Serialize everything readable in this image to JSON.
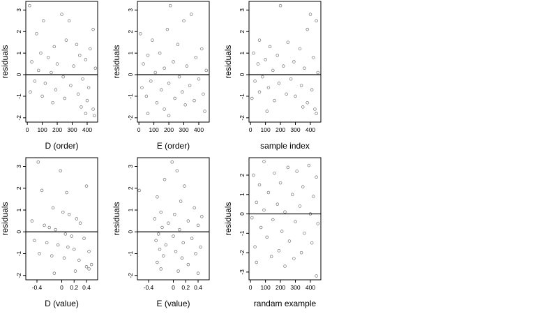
{
  "chart_data": [
    {
      "type": "scatter",
      "xlabel": "D (order)",
      "ylabel": "residuals",
      "xlim": [
        -10,
        470
      ],
      "ylim": [
        -2.2,
        3.4
      ],
      "xticks": [
        0,
        100,
        200,
        300,
        400
      ],
      "yticks": [
        -2,
        -1,
        0,
        1,
        2,
        3
      ],
      "hline": 0,
      "points": "seeded-order-D",
      "series": [
        {
          "values": [
            [
              15,
              3.2
            ],
            [
              230,
              2.8
            ],
            [
              108,
              2.5
            ],
            [
              280,
              2.5
            ],
            [
              440,
              2.1
            ],
            [
              62,
              1.9
            ],
            [
              260,
              1.6
            ],
            [
              330,
              1.4
            ],
            [
              180,
              1.3
            ],
            [
              420,
              1.2
            ],
            [
              90,
              1.0
            ],
            [
              350,
              0.9
            ],
            [
              140,
              0.8
            ],
            [
              390,
              0.7
            ],
            [
              30,
              0.6
            ],
            [
              200,
              0.5
            ],
            [
              310,
              0.4
            ],
            [
              455,
              0.3
            ],
            [
              75,
              0.2
            ],
            [
              160,
              0.1
            ],
            [
              240,
              -0.1
            ],
            [
              370,
              -0.2
            ],
            [
              50,
              -0.3
            ],
            [
              120,
              -0.4
            ],
            [
              290,
              -0.5
            ],
            [
              410,
              -0.6
            ],
            [
              190,
              -0.7
            ],
            [
              20,
              -0.8
            ],
            [
              340,
              -0.9
            ],
            [
              100,
              -1.0
            ],
            [
              250,
              -1.1
            ],
            [
              400,
              -1.2
            ],
            [
              170,
              -1.3
            ],
            [
              360,
              -1.5
            ],
            [
              440,
              -1.6
            ],
            [
              390,
              -1.8
            ],
            [
              448,
              -1.9
            ]
          ]
        }
      ]
    },
    {
      "type": "scatter",
      "xlabel": "E (order)",
      "ylabel": "residuals",
      "xlim": [
        -10,
        470
      ],
      "ylim": [
        -2.2,
        3.4
      ],
      "xticks": [
        0,
        100,
        200,
        300,
        400
      ],
      "yticks": [
        -2,
        -1,
        0,
        1,
        2,
        3
      ],
      "hline": 0,
      "points": "seeded-order-E",
      "series": [
        {
          "values": [
            [
              210,
              3.2
            ],
            [
              350,
              2.8
            ],
            [
              300,
              2.5
            ],
            [
              10,
              1.9
            ],
            [
              190,
              2.1
            ],
            [
              90,
              1.6
            ],
            [
              260,
              1.4
            ],
            [
              420,
              1.2
            ],
            [
              140,
              1.0
            ],
            [
              60,
              0.9
            ],
            [
              380,
              0.8
            ],
            [
              230,
              0.6
            ],
            [
              30,
              0.5
            ],
            [
              320,
              0.4
            ],
            [
              170,
              0.3
            ],
            [
              450,
              0.2
            ],
            [
              110,
              0.1
            ],
            [
              270,
              -0.1
            ],
            [
              400,
              -0.2
            ],
            [
              80,
              -0.3
            ],
            [
              200,
              -0.4
            ],
            [
              340,
              -0.5
            ],
            [
              20,
              -0.6
            ],
            [
              150,
              -0.7
            ],
            [
              290,
              -0.8
            ],
            [
              430,
              -0.9
            ],
            [
              50,
              -1.0
            ],
            [
              240,
              -1.1
            ],
            [
              370,
              -1.2
            ],
            [
              120,
              -1.3
            ],
            [
              310,
              -1.4
            ],
            [
              170,
              -1.6
            ],
            [
              440,
              -1.7
            ],
            [
              60,
              -1.8
            ],
            [
              200,
              -1.9
            ]
          ]
        }
      ]
    },
    {
      "type": "scatter",
      "xlabel": "sample index",
      "ylabel": "residuals",
      "xlim": [
        -10,
        470
      ],
      "ylim": [
        -2.2,
        3.4
      ],
      "xticks": [
        0,
        100,
        200,
        300,
        400
      ],
      "yticks": [
        -2,
        -1,
        0,
        1,
        2,
        3
      ],
      "hline": 0,
      "points": "seeded-order-S",
      "series": [
        {
          "values": [
            [
              200,
              3.2
            ],
            [
              400,
              2.8
            ],
            [
              440,
              2.5
            ],
            [
              380,
              2.1
            ],
            [
              60,
              1.6
            ],
            [
              250,
              1.5
            ],
            [
              130,
              1.3
            ],
            [
              330,
              1.2
            ],
            [
              20,
              1.0
            ],
            [
              180,
              0.9
            ],
            [
              420,
              0.8
            ],
            [
              100,
              0.7
            ],
            [
              290,
              0.6
            ],
            [
              50,
              0.5
            ],
            [
              220,
              0.4
            ],
            [
              360,
              0.3
            ],
            [
              150,
              0.2
            ],
            [
              450,
              0.1
            ],
            [
              80,
              -0.1
            ],
            [
              270,
              -0.2
            ],
            [
              30,
              -0.3
            ],
            [
              190,
              -0.4
            ],
            [
              340,
              -0.5
            ],
            [
              120,
              -0.6
            ],
            [
              410,
              -0.7
            ],
            [
              60,
              -0.8
            ],
            [
              240,
              -0.9
            ],
            [
              300,
              -1.0
            ],
            [
              10,
              -1.1
            ],
            [
              160,
              -1.2
            ],
            [
              380,
              -1.3
            ],
            [
              350,
              -1.5
            ],
            [
              430,
              -1.6
            ],
            [
              110,
              -1.7
            ],
            [
              440,
              -1.8
            ]
          ]
        }
      ]
    },
    {
      "type": "scatter",
      "xlabel": "D (value)",
      "ylabel": "residuals",
      "xlim": [
        -0.58,
        0.58
      ],
      "ylim": [
        -2.2,
        3.4
      ],
      "xticks": [
        -0.4,
        0.0,
        0.2,
        0.4
      ],
      "yticks": [
        -2,
        -1,
        0,
        1,
        2,
        3
      ],
      "hline": 0,
      "points": "seeded-value-D",
      "series": [
        {
          "values": [
            [
              -0.38,
              3.2
            ],
            [
              -0.02,
              2.8
            ],
            [
              0.08,
              1.8
            ],
            [
              0.4,
              2.1
            ],
            [
              -0.32,
              1.9
            ],
            [
              -0.14,
              1.1
            ],
            [
              0.02,
              0.9
            ],
            [
              0.12,
              0.8
            ],
            [
              0.24,
              0.6
            ],
            [
              0.3,
              0.4
            ],
            [
              -0.48,
              0.5
            ],
            [
              -0.28,
              0.3
            ],
            [
              -0.2,
              0.2
            ],
            [
              -0.1,
              0.1
            ],
            [
              0.06,
              -0.1
            ],
            [
              0.16,
              -0.2
            ],
            [
              0.36,
              -0.3
            ],
            [
              -0.44,
              -0.4
            ],
            [
              -0.24,
              -0.5
            ],
            [
              -0.06,
              -0.6
            ],
            [
              0.1,
              -0.7
            ],
            [
              0.2,
              -0.8
            ],
            [
              0.44,
              -0.9
            ],
            [
              -0.36,
              -1.0
            ],
            [
              -0.16,
              -1.1
            ],
            [
              0.04,
              -1.2
            ],
            [
              0.28,
              -1.3
            ],
            [
              0.48,
              -1.5
            ],
            [
              0.4,
              -1.6
            ],
            [
              0.44,
              -1.7
            ],
            [
              -0.12,
              -1.9
            ],
            [
              0.22,
              -1.8
            ]
          ]
        }
      ]
    },
    {
      "type": "scatter",
      "xlabel": "E (value)",
      "ylabel": "residuals",
      "xlim": [
        -0.58,
        0.58
      ],
      "ylim": [
        -2.2,
        3.4
      ],
      "xticks": [
        -0.4,
        0.0,
        0.2,
        0.4
      ],
      "yticks": [
        -2,
        -1,
        0,
        1,
        2,
        3
      ],
      "hline": 0,
      "points": "seeded-value-E",
      "series": [
        {
          "values": [
            [
              -0.02,
              3.2
            ],
            [
              0.06,
              2.8
            ],
            [
              -0.14,
              2.4
            ],
            [
              -0.55,
              1.9
            ],
            [
              0.18,
              2.1
            ],
            [
              -0.26,
              1.6
            ],
            [
              0.12,
              1.4
            ],
            [
              0.34,
              1.1
            ],
            [
              -0.2,
              0.9
            ],
            [
              0.02,
              0.8
            ],
            [
              0.46,
              0.7
            ],
            [
              -0.3,
              0.6
            ],
            [
              0.24,
              0.5
            ],
            [
              -0.08,
              0.4
            ],
            [
              0.4,
              0.3
            ],
            [
              -0.18,
              0.2
            ],
            [
              0.1,
              0.1
            ],
            [
              -0.24,
              -0.1
            ],
            [
              0.0,
              -0.2
            ],
            [
              0.3,
              -0.3
            ],
            [
              -0.28,
              -0.4
            ],
            [
              0.16,
              -0.5
            ],
            [
              -0.12,
              -0.6
            ],
            [
              0.44,
              -0.7
            ],
            [
              -0.22,
              -0.8
            ],
            [
              0.04,
              -0.9
            ],
            [
              0.36,
              -1.0
            ],
            [
              -0.16,
              -1.1
            ],
            [
              0.14,
              -1.2
            ],
            [
              -0.26,
              -1.4
            ],
            [
              0.24,
              -1.5
            ],
            [
              -0.2,
              -1.7
            ],
            [
              0.08,
              -1.8
            ],
            [
              0.4,
              -1.9
            ]
          ]
        }
      ]
    },
    {
      "type": "scatter",
      "xlabel": "randam example",
      "ylabel": "residuals",
      "xlim": [
        -10,
        470
      ],
      "ylim": [
        -3.4,
        2.9
      ],
      "xticks": [
        0,
        100,
        200,
        300,
        400
      ],
      "yticks": [
        -3,
        -2,
        -1,
        0,
        1,
        2
      ],
      "hline": 0,
      "points": "seeded-normal",
      "series": [
        {
          "values": [
            [
              90,
              2.7
            ],
            [
              250,
              2.4
            ],
            [
              390,
              2.5
            ],
            [
              20,
              2.0
            ],
            [
              160,
              2.1
            ],
            [
              310,
              2.2
            ],
            [
              440,
              1.9
            ],
            [
              60,
              1.5
            ],
            [
              200,
              1.6
            ],
            [
              350,
              1.4
            ],
            [
              120,
              1.1
            ],
            [
              280,
              1.0
            ],
            [
              420,
              0.9
            ],
            [
              40,
              0.6
            ],
            [
              180,
              0.5
            ],
            [
              330,
              0.4
            ],
            [
              90,
              0.2
            ],
            [
              230,
              0.1
            ],
            [
              400,
              0.0
            ],
            [
              10,
              -0.2
            ],
            [
              150,
              -0.3
            ],
            [
              300,
              -0.4
            ],
            [
              450,
              -0.5
            ],
            [
              70,
              -0.7
            ],
            [
              210,
              -0.9
            ],
            [
              360,
              -1.0
            ],
            [
              110,
              -1.2
            ],
            [
              260,
              -1.4
            ],
            [
              410,
              -1.5
            ],
            [
              30,
              -1.7
            ],
            [
              190,
              -1.9
            ],
            [
              340,
              -2.0
            ],
            [
              140,
              -2.2
            ],
            [
              290,
              -2.3
            ],
            [
              40,
              -2.5
            ],
            [
              230,
              -2.7
            ],
            [
              440,
              -3.2
            ]
          ]
        }
      ]
    }
  ]
}
